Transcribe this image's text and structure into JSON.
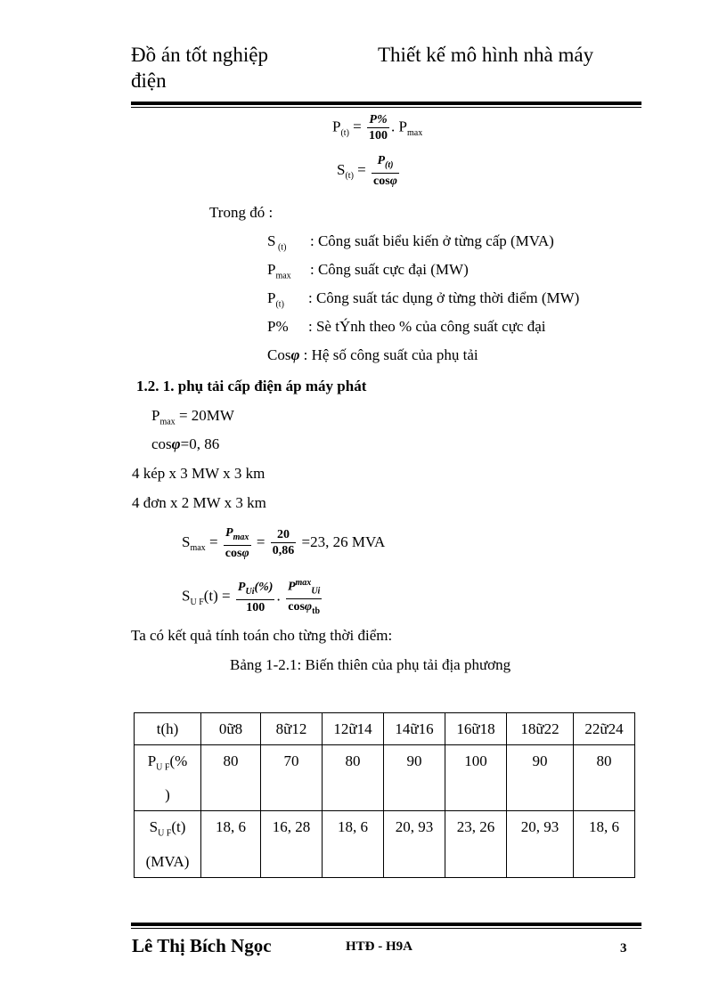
{
  "header": {
    "left": "Đồ án tốt nghiệp",
    "left_cont": "điện",
    "right": "Thiết kế mô hình nhà máy"
  },
  "formulas": {
    "p_t": {
      "lhs": "P",
      "lhs_sub": "(t)",
      "num": "P%",
      "den": "100",
      "rhs": ". P",
      "rhs_sub": "max"
    },
    "s_t": {
      "lhs": "S",
      "lhs_sub": "(t)",
      "num": "P",
      "num_sub": "(t)",
      "den": "cos",
      "den_sym": "φ"
    }
  },
  "where_label": "Trong đó :",
  "definitions": [
    {
      "sym": "S",
      "sub": " (t)",
      "text": ": Công suất biểu kiến ở từng cấp (MVA)"
    },
    {
      "sym": "P",
      "sub": "max",
      "text": ": Công suất cực đại (MW)"
    },
    {
      "sym": "P",
      "sub": "(t)",
      "text": ": Công suất tác dụng ở từng thời điểm (MW)"
    },
    {
      "sym": "P%",
      "sub": "",
      "text": ": Sè tÝnh theo % của công suất cực đại"
    },
    {
      "sym": "Cos",
      "sub": "φ",
      "text": ": Hệ số công suất của phụ tải"
    }
  ],
  "section_heading": "1.2. 1. phụ tải cấp điện áp máy phát",
  "params": {
    "pmax": "P",
    "pmax_sub": "max",
    "pmax_val": " = 20MW",
    "cos": "cos",
    "phi": "φ",
    "cos_val": "=0, 86"
  },
  "lines": [
    "4 kép x 3 MW x 3 km",
    "4 đơn x 2 MW x 3 km"
  ],
  "smax": {
    "lhs": "S",
    "lhs_sub": "max",
    "num1": "P",
    "num1_sub": "max",
    "den1": "cos",
    "phi": "φ",
    "num2": "20",
    "den2": "0,86",
    "result": "=23, 26 MVA"
  },
  "suf": {
    "lhs": "S",
    "lhs_sub": "U F",
    "arg": "(t) =",
    "num1": "P",
    "num1_sub": "Ui",
    "num1_rest": "(%)",
    "den1": "100",
    "num2": "P",
    "num2_sub": "Ui",
    "num2_sup": "max",
    "den2": "cos",
    "den2_sub": "tb"
  },
  "result_intro": "Ta có kết quả tính toán cho từng thời điểm:",
  "table_caption": "Bảng 1-2.1: Biến thiên của phụ tải địa phương",
  "table": {
    "header": [
      "t(h)",
      "0ữ8",
      "8ữ12",
      "12ữ14",
      "14ữ16",
      "16ữ18",
      "18ữ22",
      "22ữ24"
    ],
    "row_p_label": "P",
    "row_p_label_sub": "U F",
    "row_p_label_rest": "(%",
    "row_p_label_rest2": ")",
    "row_p": [
      "80",
      "70",
      "80",
      "90",
      "100",
      "90",
      "80"
    ],
    "row_s_label": "S",
    "row_s_label_sub": "U F",
    "row_s_label_rest": "(t)",
    "row_s_label_rest2": "(MVA)",
    "row_s": [
      "18, 6",
      "16, 28",
      "18, 6",
      "20, 93",
      "23, 26",
      "20, 93",
      "18, 6"
    ]
  },
  "footer": {
    "author": "Lê Thị Bích Ngọc",
    "class": "HTĐ - H9A",
    "page": "3"
  }
}
